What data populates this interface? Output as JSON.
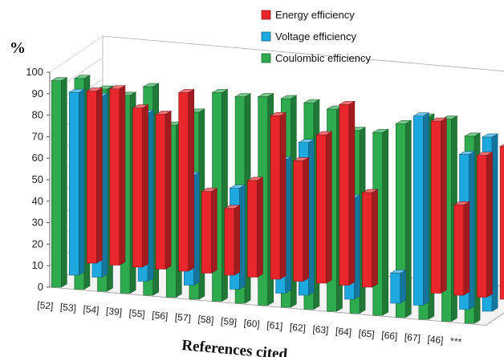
{
  "chart_data": {
    "type": "bar",
    "title": "",
    "xlabel": "References cited",
    "ylabel": "%",
    "ylim": [
      0,
      100
    ],
    "yticks": [
      "0",
      "10",
      "20",
      "30",
      "40",
      "50",
      "60",
      "70",
      "80",
      "90",
      "100"
    ],
    "categories": [
      "[52]",
      "[53]",
      "[54]",
      "[39]",
      "[55]",
      "[56]",
      "[57]",
      "[58]",
      "[59]",
      "[60]",
      "[61]",
      "[62]",
      "[63]",
      "[64]",
      "[65]",
      "[66]",
      "[67]",
      "[46]",
      "***"
    ],
    "series": [
      {
        "name": "Energy efficiency",
        "color": "#e8262b",
        "values": [
          80,
          82,
          74,
          72,
          83,
          38,
          31,
          45,
          76,
          56,
          69,
          84,
          44,
          null,
          null,
          80,
          42,
          66,
          71
        ]
      },
      {
        "name": "Voltage efficiency",
        "color": "#1ea8e0",
        "values": [
          85,
          84,
          null,
          78,
          null,
          51,
          null,
          47,
          null,
          62,
          71,
          null,
          47,
          null,
          14,
          88,
          null,
          72,
          81
        ]
      },
      {
        "name": "Coulombic efficiency",
        "color": "#2eab4f",
        "values": [
          96,
          98,
          94,
          92,
          97,
          80,
          87,
          97,
          96,
          97,
          97,
          96,
          94,
          85,
          85,
          90,
          94,
          94,
          87
        ]
      }
    ],
    "legend_position": "top-right",
    "grid": false,
    "view": "3d"
  }
}
